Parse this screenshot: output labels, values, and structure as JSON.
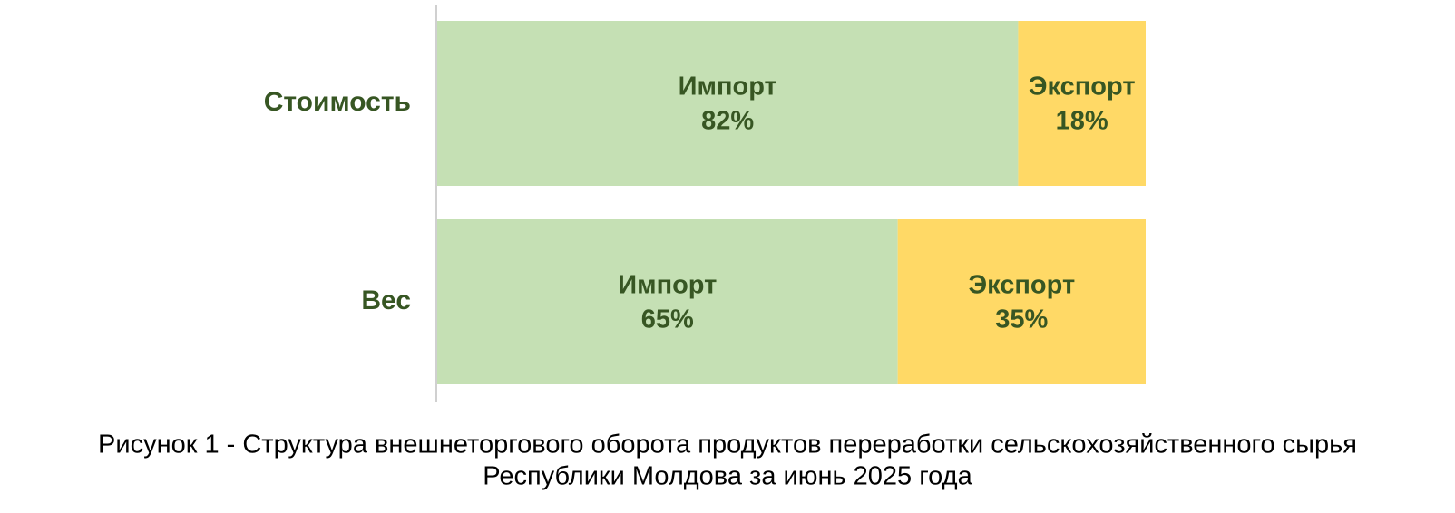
{
  "chart_data": {
    "type": "stacked-bar-horizontal",
    "title": [
      "Рисунок 1 - Структура внешнеторгового оборота продуктов переработки сельскохозяйственного сырья",
      "Республики Молдова за июнь 2025 года"
    ],
    "categories": [
      "Стоимость",
      "Вес"
    ],
    "series": [
      {
        "name": "Импорт",
        "color": "#c5e0b4",
        "values": [
          82,
          65
        ],
        "value_labels": [
          "82%",
          "65%"
        ]
      },
      {
        "name": "Экспорт",
        "color": "#ffd966",
        "values": [
          18,
          35
        ],
        "value_labels": [
          "18%",
          "35%"
        ]
      }
    ],
    "xlim": [
      0,
      100
    ]
  }
}
